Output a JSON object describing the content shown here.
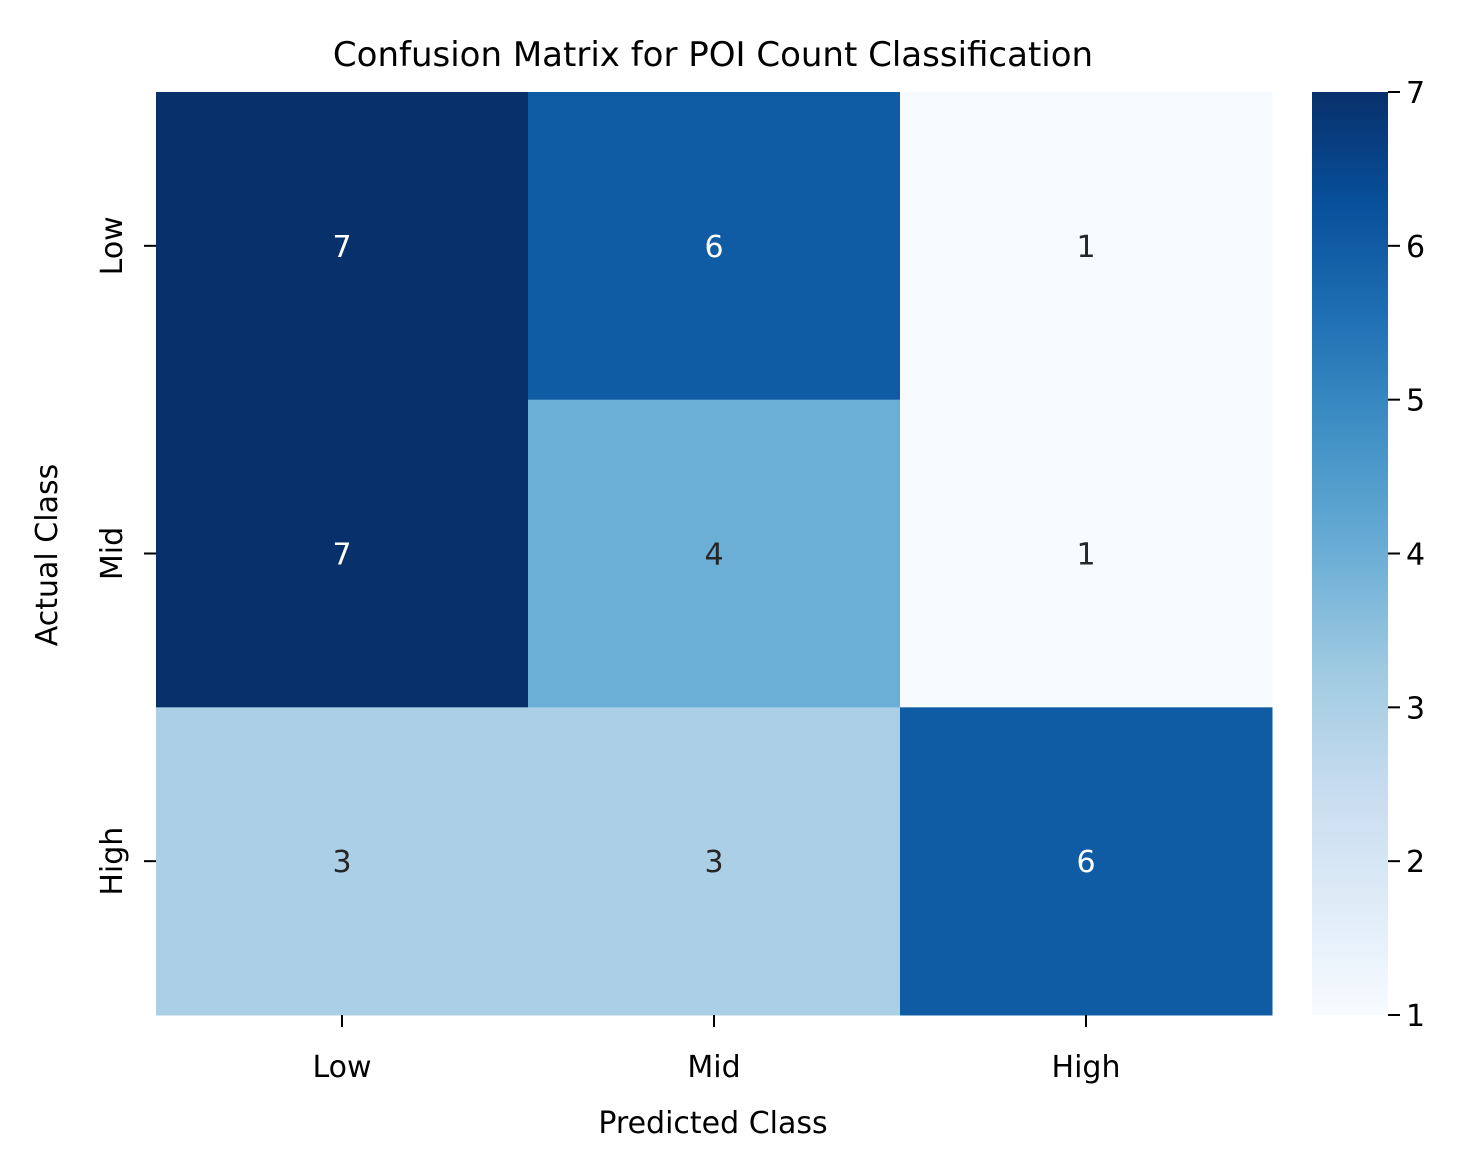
{
  "chart_data": {
    "type": "heatmap",
    "title": "Confusion Matrix for POI Count Classification",
    "xlabel": "Predicted Class",
    "ylabel": "Actual Class",
    "x_categories": [
      "Low",
      "Mid",
      "High"
    ],
    "y_categories": [
      "Low",
      "Mid",
      "High"
    ],
    "values": [
      [
        7,
        6,
        1
      ],
      [
        7,
        4,
        1
      ],
      [
        3,
        3,
        6
      ]
    ],
    "colorbar": {
      "min": 1,
      "max": 7,
      "ticks": [
        1,
        2,
        3,
        4,
        5,
        6,
        7
      ],
      "colormap": "Blues"
    },
    "colors": {
      "scale": [
        "#f7fbff",
        "#deebf7",
        "#c6dbef",
        "#9ecae1",
        "#6baed6",
        "#4292c6",
        "#2171b5",
        "#08519c",
        "#08306b"
      ],
      "text_dark": "#262626",
      "text_light": "#ffffff",
      "axis": "#000000"
    }
  }
}
